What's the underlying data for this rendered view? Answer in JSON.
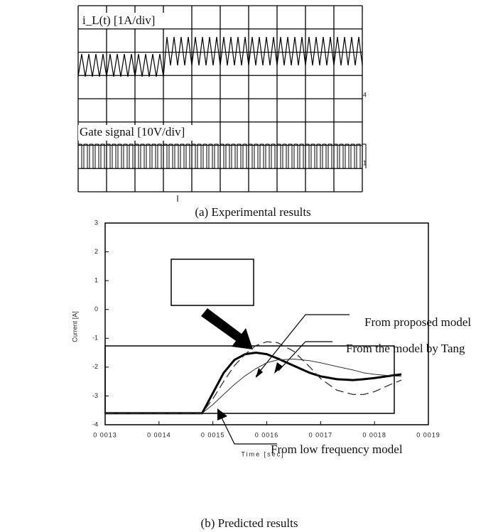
{
  "top_panel": {
    "trace_label": "i_L(t) [1A/div]",
    "gate_label": "Gate signal [10V/div]",
    "marker_4": "4",
    "marker_1": "1",
    "caption": "(a) Experimental results"
  },
  "chart_data": {
    "type": "line",
    "caption": "(b) Predicted results",
    "x_label": "Time [sec]",
    "y_label": "Current [A]",
    "x": [
      0.0013,
      0.00148,
      0.0015,
      0.00152,
      0.00154,
      0.00156,
      0.00158,
      0.0016,
      0.00162,
      0.00165,
      0.00168,
      0.0017,
      0.00173,
      0.00176,
      0.00178,
      0.0018,
      0.00183,
      0.00185
    ],
    "series": [
      {
        "color": "#000000",
        "style": "thick",
        "values": [
          -3.6,
          -3.6,
          -2.9,
          -2.2,
          -1.75,
          -1.55,
          -1.5,
          -1.55,
          -1.7,
          -1.95,
          -2.2,
          -2.32,
          -2.42,
          -2.45,
          -2.42,
          -2.38,
          -2.3,
          -2.25
        ]
      },
      {
        "color": "#333333",
        "style": "dashed",
        "values": [
          -3.6,
          -3.6,
          -3.1,
          -2.5,
          -1.95,
          -1.55,
          -1.25,
          -1.12,
          -1.15,
          -1.45,
          -2.0,
          -2.4,
          -2.8,
          -2.95,
          -2.95,
          -2.85,
          -2.6,
          -2.45
        ]
      },
      {
        "color": "#333333",
        "style": "thin",
        "values": [
          -3.6,
          -3.6,
          -3.3,
          -2.95,
          -2.6,
          -2.3,
          -2.05,
          -1.85,
          -1.75,
          -1.72,
          -1.78,
          -1.85,
          -1.98,
          -2.1,
          -2.2,
          -2.25,
          -2.3,
          -2.32
        ]
      }
    ],
    "xlim": [
      0.0013,
      0.0019
    ],
    "ylim": [
      -4,
      3
    ],
    "xticks": [
      {
        "value": 0.0013,
        "label": "0 0013"
      },
      {
        "value": 0.0014,
        "label": "0 0014"
      },
      {
        "value": 0.0015,
        "label": "0 0015"
      },
      {
        "value": 0.0016,
        "label": "0 0016"
      },
      {
        "value": 0.0017,
        "label": "0 0017"
      },
      {
        "value": 0.0018,
        "label": "0 0018"
      },
      {
        "value": 0.0019,
        "label": "0 0019"
      }
    ],
    "yticks": [
      -4,
      -3,
      -2,
      -1,
      0,
      1,
      2,
      3
    ],
    "annotations": [
      "From proposed model",
      "From the model by Tang",
      "From low frequency model"
    ]
  }
}
